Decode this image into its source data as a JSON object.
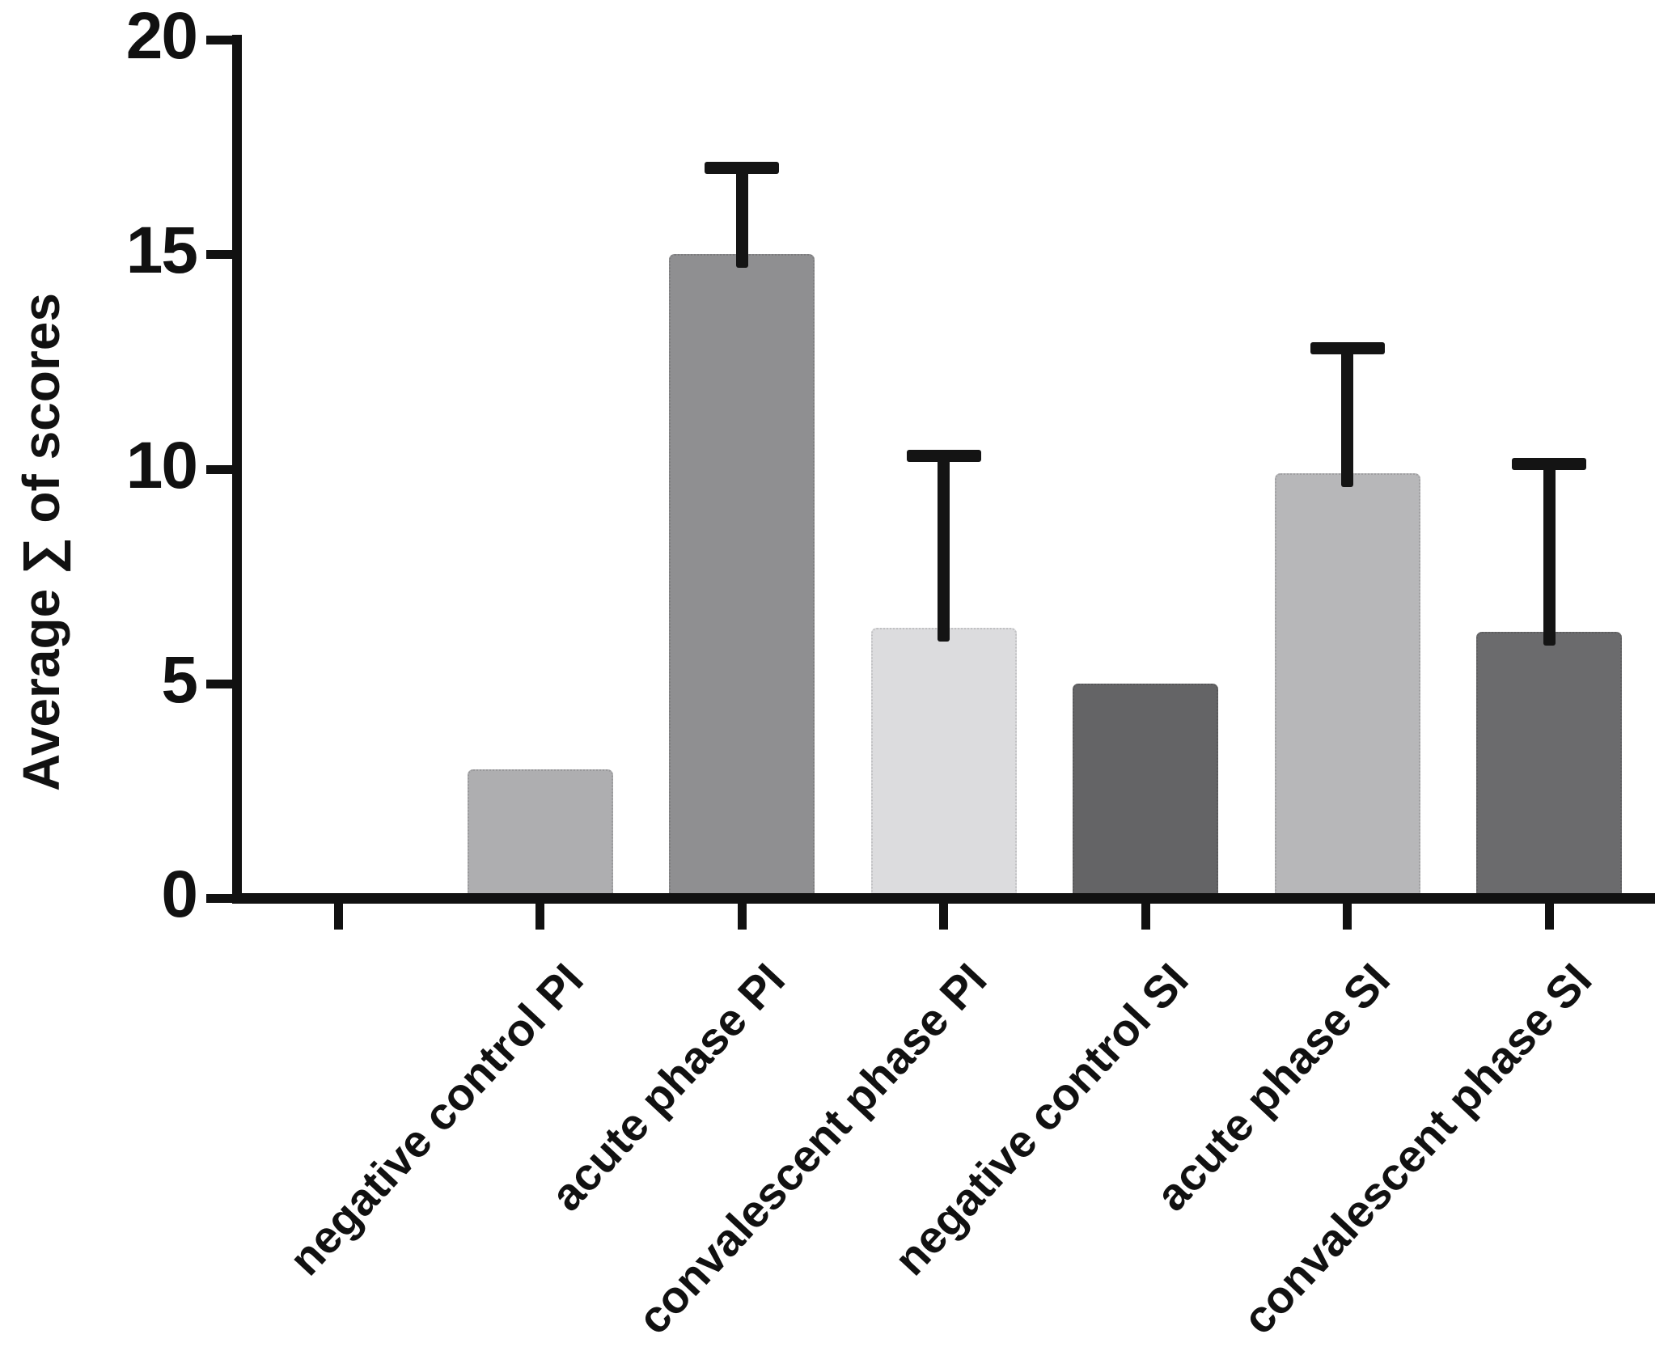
{
  "chart_data": {
    "type": "bar",
    "title": "",
    "ylabel": "Average ∑ of scores",
    "xlabel": "",
    "categories": [
      "negative control PI",
      "acute phase PI",
      "convalescent phase PI",
      "negative control SI",
      "acute phase SI",
      "convalescent phase SI"
    ],
    "series": [
      {
        "name": "Average ∑ of scores",
        "values": [
          3.0,
          15.0,
          6.3,
          5.0,
          9.9,
          6.2
        ],
        "error_plus": [
          0,
          2.0,
          4.0,
          0,
          2.9,
          3.9
        ]
      }
    ],
    "bar_colors": [
      "#aeaeb0",
      "#8f8f91",
      "#dcdcde",
      "#646466",
      "#b7b7b9",
      "#6b6b6d"
    ],
    "ylim": [
      0,
      20
    ],
    "yticks": [
      0,
      5,
      10,
      15,
      20
    ],
    "x_tick_count": 7,
    "grid": false,
    "legend": false,
    "axis_color": "#111111",
    "error_bar_color": "#141414",
    "background": "#ffffff"
  }
}
